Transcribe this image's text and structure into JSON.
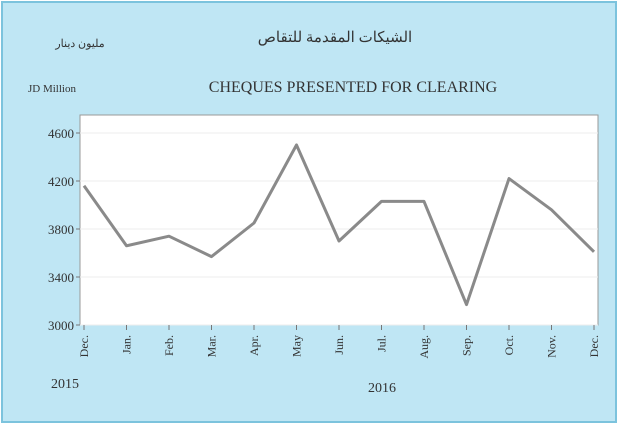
{
  "chart_data": {
    "type": "line",
    "title": "CHEQUES PRESENTED FOR CLEARING",
    "title_arabic": "الشيكات المقدمة للتقاص",
    "unit_label": "JD Million",
    "unit_label_arabic": "مليون دينار",
    "categories": [
      "Dec.",
      "Jan.",
      "Feb.",
      "Mar.",
      "Apr.",
      "May",
      "Jun.",
      "Jul.",
      "Aug.",
      "Sep.",
      "Oct.",
      "Nov.",
      "Dec."
    ],
    "year_labels": [
      "2015",
      "2016"
    ],
    "series": [
      {
        "name": "Cheques presented for clearing",
        "color": "#8a8a8a",
        "values": [
          4160,
          3660,
          3740,
          3570,
          3850,
          4500,
          3700,
          4030,
          4030,
          3170,
          4220,
          3960,
          3610
        ]
      }
    ],
    "ylim": [
      3000,
      4750
    ],
    "yticks": [
      3000,
      3400,
      3800,
      4200,
      4600
    ],
    "grid": true
  }
}
